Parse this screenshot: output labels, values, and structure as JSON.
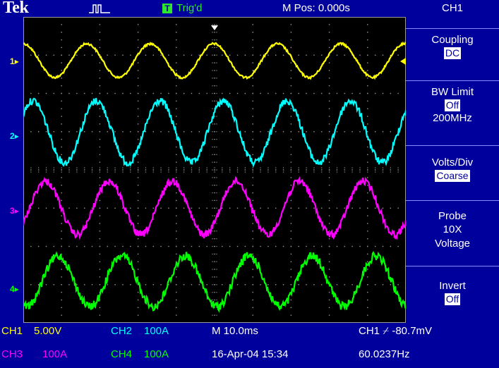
{
  "header": {
    "brand": "Tek",
    "trigger_badge": "T",
    "trigger_status": "Trig'd",
    "horizontal_position": "M Pos: 0.000s"
  },
  "channel_markers": [
    "1",
    "2",
    "3",
    "4"
  ],
  "menu": {
    "title": "CH1",
    "items": [
      {
        "label": "Coupling",
        "value": "DC"
      },
      {
        "label": "BW Limit",
        "value": "Off",
        "extra": "200MHz"
      },
      {
        "label": "Volts/Div",
        "value": "Coarse"
      },
      {
        "label": "Probe",
        "line2": "10X",
        "line3": "Voltage"
      },
      {
        "label": "Invert",
        "value": "Off"
      }
    ]
  },
  "readout": {
    "ch1": "CH1",
    "ch1_scale": "5.00V",
    "ch2": "CH2",
    "ch2_scale": "100A",
    "ch3": "CH3",
    "ch3_scale": "100A",
    "ch4": "CH4",
    "ch4_scale": "100A",
    "timebase": "M 10.0ms",
    "date": "16-Apr-04 15:34",
    "trigger": "CH1 ⌿ -80.7mV",
    "frequency": "60.0237Hz"
  },
  "colors": {
    "ch1": "#ffff00",
    "ch2": "#00ffff",
    "ch3": "#ff00ff",
    "ch4": "#00ff00",
    "background": "#00009c",
    "trigger_badge": "#2ee82e"
  }
}
